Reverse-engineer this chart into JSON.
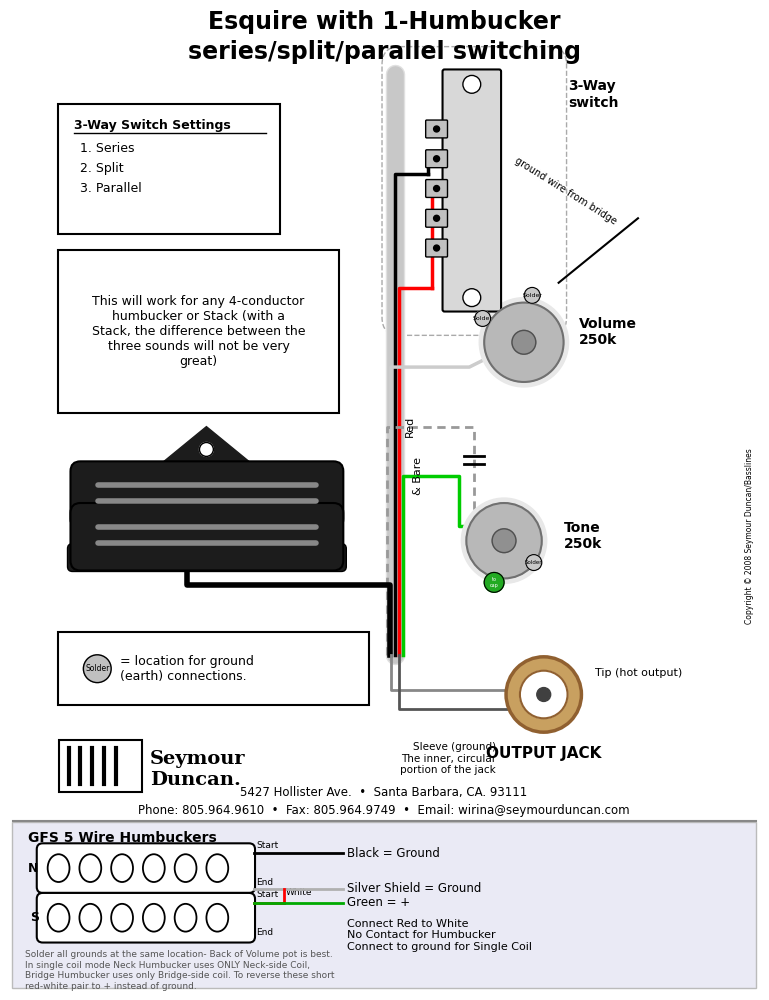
{
  "title_line1": "Esquire with 1-Humbucker",
  "title_line2": "series/split/parallel switching",
  "bg_color": "#ffffff",
  "switch_settings_title": "3-Way Switch Settings",
  "switch_settings_items": [
    "1. Series",
    "2. Split",
    "3. Parallel"
  ],
  "info_text": "This will work for any 4-conductor\nhumbucker or Stack (with a\nStack, the difference between the\nthree sounds will not be very\ngreat)",
  "solder_legend_text": "= location for ground\n(earth) connections.",
  "volume_label": "Volume\n250k",
  "tone_label": "Tone\n250k",
  "three_way_label": "3-Way\nswitch",
  "output_jack_label": "OUTPUT JACK",
  "tip_label": "Tip (hot output)",
  "sleeve_label": "Sleeve (ground)\nThe inner, circular\nportion of the jack",
  "ground_wire_label": "ground wire from bridge",
  "copyright_text": "Copyright © 2008 Seymour Duncan/Basslines",
  "red_label": "Red",
  "bare_label": "& Bare",
  "gfs_title": "GFS 5 Wire Humbuckers",
  "gfs_start_label": "Start",
  "gfs_end_label": "End",
  "gfs_white_label": "White",
  "gfs_start2_label": "Start",
  "gfs_end2_label": "End",
  "gfs_n_label": "N",
  "gfs_s_label": "S",
  "gfs_black_label": "Black = Ground",
  "gfs_silver_label": "Silver Shield = Ground",
  "gfs_green_label": "Green = +",
  "gfs_connect_label": "Connect Red to White\nNo Contact for Humbucker\nConnect to ground for Single Coil",
  "gfs_note": "Solder all grounds at the same location- Back of Volume pot is best.\nIn single coil mode Neck Humbucker uses ONLY Neck-side Coil,\nBridge Humbucker uses only Bridge-side coil. To reverse these short\nred-white pair to + instead of ground.",
  "seymour_address": "5427 Hollister Ave.  •  Santa Barbara, CA. 93111",
  "seymour_phone": "Phone: 805.964.9610  •  Fax: 805.964.9749  •  Email: wirina@seymourduncan.com",
  "seymour_name": "Seymour\nDuncan."
}
